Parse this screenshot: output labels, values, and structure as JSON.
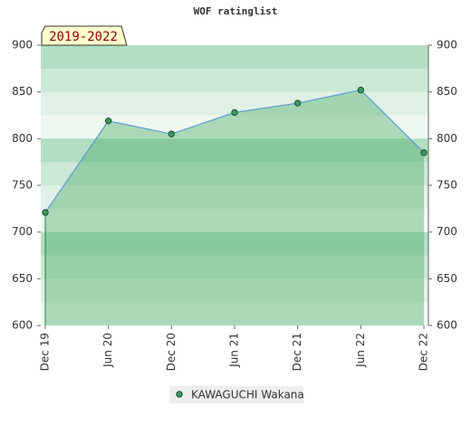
{
  "chart_data": {
    "type": "line",
    "title": "WOF ratinglist",
    "period_label": "2019-2022",
    "categories": [
      "Dec 19",
      "Jun 20",
      "Dec 20",
      "Jun 21",
      "Dec 21",
      "Jun 22",
      "Dec 22"
    ],
    "series": [
      {
        "name": "KAWAGUCHI Wakana",
        "color": "#3c9a5c",
        "values": [
          721,
          819,
          805,
          828,
          838,
          852,
          785
        ]
      }
    ],
    "ylim": [
      600,
      900
    ],
    "yticks": [
      600,
      650,
      700,
      750,
      800,
      850,
      900
    ],
    "fill_area": true
  }
}
